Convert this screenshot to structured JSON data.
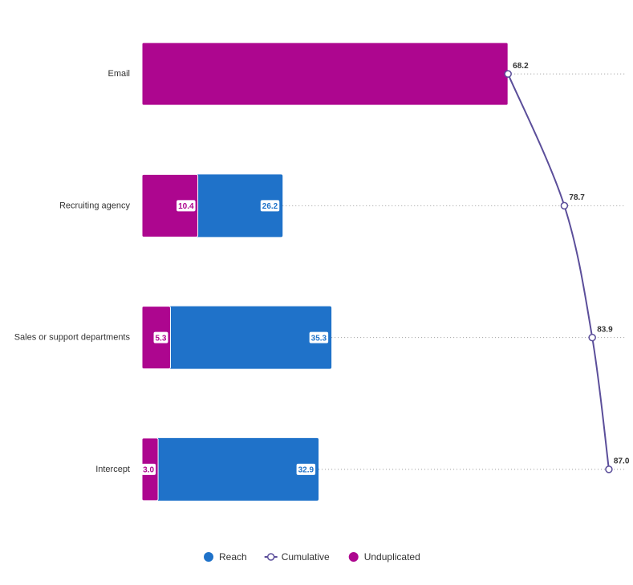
{
  "chart_data": {
    "type": "turf",
    "categories": [
      "Email",
      "Recruiting agency",
      "Sales or support departments",
      "Intercept"
    ],
    "xlim": [
      0,
      90
    ],
    "series": [
      {
        "name": "Reach",
        "color": "#1f72c9",
        "values": [
          null,
          26.2,
          35.3,
          32.9
        ],
        "value_labels": [
          null,
          "26.2",
          "35.3",
          "32.9"
        ]
      },
      {
        "name": "Cumulative",
        "color": "#5b4e9a",
        "values": [
          68.2,
          78.7,
          83.9,
          87.0
        ],
        "value_labels": [
          "68.2",
          "78.7",
          "83.9",
          "87.0"
        ]
      },
      {
        "name": "Unduplicated",
        "color": "#ad068f",
        "values": [
          68.2,
          10.4,
          5.3,
          3.0
        ],
        "value_labels": [
          null,
          "10.4",
          "5.3",
          "3.0"
        ]
      }
    ]
  }
}
